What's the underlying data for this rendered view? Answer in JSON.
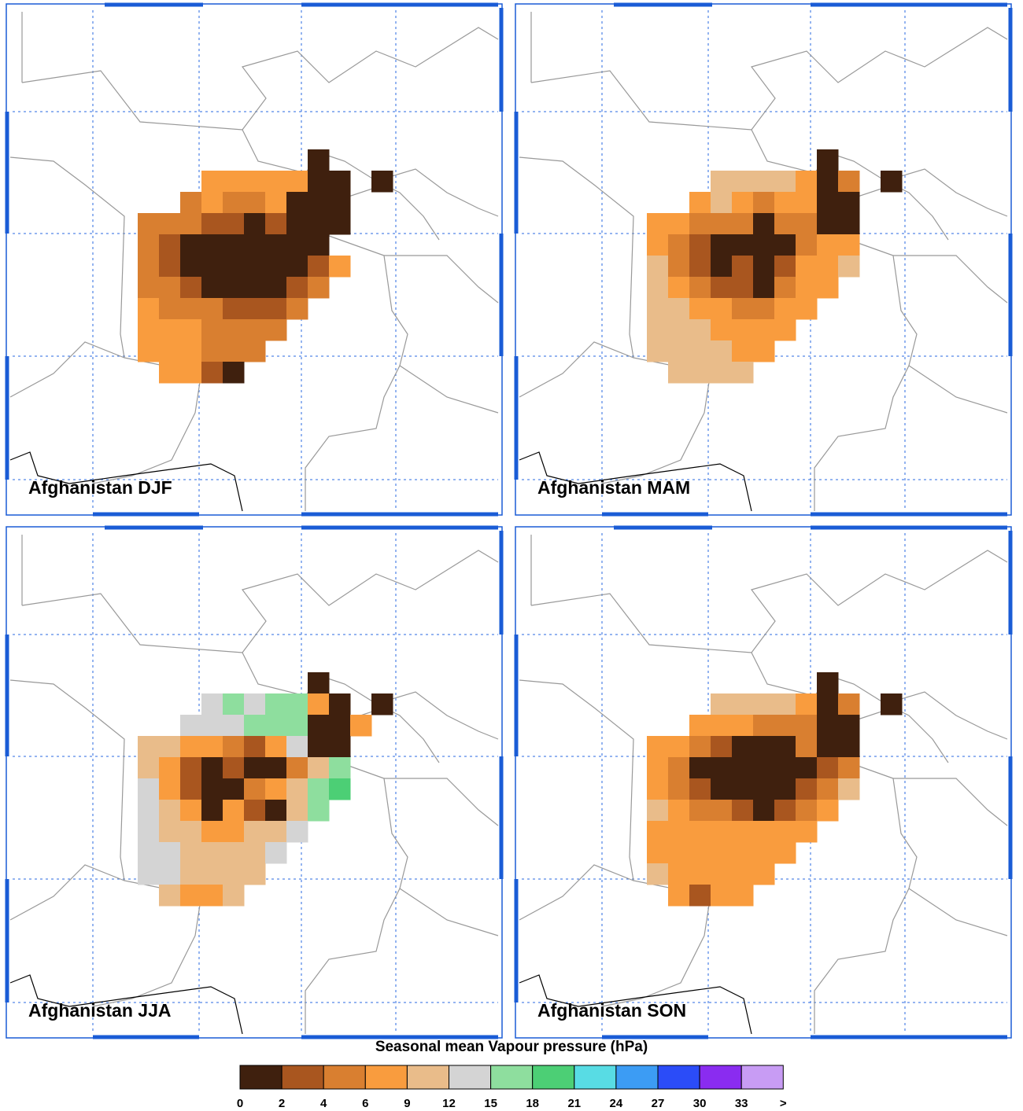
{
  "panels": [
    {
      "title": "Afghanistan DJF",
      "cells": [
        [
          null,
          null,
          null,
          null,
          null,
          null,
          null,
          null,
          null,
          1,
          null,
          null,
          null
        ],
        [
          null,
          null,
          null,
          null,
          7,
          7,
          7,
          7,
          7,
          1,
          1,
          null,
          1
        ],
        [
          null,
          null,
          null,
          5,
          7,
          5,
          5,
          7,
          1,
          1,
          1,
          null,
          null
        ],
        [
          null,
          5,
          5,
          5,
          3,
          3,
          1,
          3,
          1,
          1,
          1,
          null,
          null
        ],
        [
          null,
          5,
          3,
          1,
          1,
          1,
          1,
          1,
          1,
          1,
          null,
          null,
          null
        ],
        [
          null,
          5,
          3,
          1,
          1,
          1,
          1,
          1,
          1,
          3,
          7,
          null,
          null
        ],
        [
          null,
          5,
          5,
          3,
          1,
          1,
          1,
          1,
          3,
          5,
          null,
          null,
          null
        ],
        [
          null,
          7,
          5,
          5,
          5,
          3,
          3,
          3,
          5,
          null,
          null,
          null,
          null
        ],
        [
          null,
          7,
          7,
          7,
          5,
          5,
          5,
          5,
          null,
          null,
          null,
          null,
          null
        ],
        [
          null,
          7,
          7,
          7,
          5,
          5,
          5,
          null,
          null,
          null,
          null,
          null,
          null
        ],
        [
          null,
          null,
          7,
          7,
          3,
          1,
          null,
          null,
          null,
          null,
          null,
          null,
          null
        ]
      ]
    },
    {
      "title": "Afghanistan MAM",
      "cells": [
        [
          null,
          null,
          null,
          null,
          null,
          null,
          null,
          null,
          null,
          1,
          null,
          null,
          null
        ],
        [
          null,
          null,
          null,
          null,
          10,
          10,
          10,
          10,
          7,
          1,
          5,
          null,
          1
        ],
        [
          null,
          null,
          null,
          7,
          10,
          7,
          5,
          7,
          7,
          1,
          1,
          null,
          null
        ],
        [
          null,
          7,
          7,
          5,
          5,
          5,
          1,
          5,
          5,
          1,
          1,
          null,
          null
        ],
        [
          null,
          7,
          5,
          3,
          1,
          1,
          1,
          1,
          5,
          7,
          7,
          null,
          null
        ],
        [
          null,
          10,
          5,
          3,
          1,
          3,
          1,
          3,
          7,
          7,
          10,
          null,
          null
        ],
        [
          null,
          10,
          7,
          5,
          3,
          3,
          1,
          5,
          7,
          7,
          null,
          null,
          null
        ],
        [
          null,
          10,
          10,
          7,
          7,
          5,
          5,
          7,
          7,
          null,
          null,
          null,
          null
        ],
        [
          null,
          10,
          10,
          10,
          7,
          7,
          7,
          7,
          null,
          null,
          null,
          null,
          null
        ],
        [
          null,
          10,
          10,
          10,
          10,
          7,
          7,
          null,
          null,
          null,
          null,
          null,
          null
        ],
        [
          null,
          null,
          10,
          10,
          10,
          10,
          null,
          null,
          null,
          null,
          null,
          null,
          null
        ]
      ]
    },
    {
      "title": "Afghanistan JJA",
      "cells": [
        [
          null,
          null,
          null,
          null,
          null,
          null,
          null,
          null,
          null,
          1,
          null,
          null,
          null
        ],
        [
          null,
          null,
          null,
          null,
          13,
          16,
          13,
          16,
          16,
          7,
          1,
          null,
          1
        ],
        [
          null,
          null,
          null,
          13,
          13,
          13,
          16,
          16,
          16,
          1,
          1,
          7,
          null
        ],
        [
          null,
          10,
          10,
          7,
          7,
          5,
          3,
          7,
          13,
          1,
          1,
          null,
          null
        ],
        [
          null,
          10,
          7,
          3,
          1,
          3,
          1,
          1,
          5,
          10,
          16,
          null,
          null
        ],
        [
          null,
          13,
          7,
          3,
          1,
          1,
          5,
          7,
          10,
          16,
          19,
          null,
          null
        ],
        [
          null,
          13,
          10,
          7,
          1,
          7,
          3,
          1,
          10,
          16,
          null,
          null,
          null
        ],
        [
          null,
          13,
          10,
          10,
          7,
          7,
          10,
          10,
          13,
          null,
          null,
          null,
          null
        ],
        [
          null,
          13,
          13,
          10,
          10,
          10,
          10,
          13,
          null,
          null,
          null,
          null,
          null
        ],
        [
          null,
          13,
          13,
          10,
          10,
          10,
          10,
          null,
          null,
          null,
          null,
          null,
          null
        ],
        [
          null,
          null,
          10,
          7,
          7,
          10,
          null,
          null,
          null,
          null,
          null,
          null,
          null
        ]
      ]
    },
    {
      "title": "Afghanistan SON",
      "cells": [
        [
          null,
          null,
          null,
          null,
          null,
          null,
          null,
          null,
          null,
          1,
          null,
          null,
          null
        ],
        [
          null,
          null,
          null,
          null,
          10,
          10,
          10,
          10,
          7,
          1,
          5,
          null,
          1
        ],
        [
          null,
          null,
          null,
          7,
          7,
          7,
          5,
          5,
          5,
          1,
          1,
          null,
          null
        ],
        [
          null,
          7,
          7,
          5,
          3,
          1,
          1,
          1,
          5,
          1,
          1,
          null,
          null
        ],
        [
          null,
          7,
          5,
          1,
          1,
          1,
          1,
          1,
          1,
          3,
          5,
          null,
          null
        ],
        [
          null,
          7,
          5,
          3,
          1,
          1,
          1,
          1,
          3,
          5,
          10,
          null,
          null
        ],
        [
          null,
          10,
          7,
          5,
          5,
          3,
          1,
          3,
          5,
          7,
          null,
          null,
          null
        ],
        [
          null,
          7,
          7,
          7,
          7,
          7,
          7,
          7,
          7,
          null,
          null,
          null,
          null
        ],
        [
          null,
          7,
          7,
          7,
          7,
          7,
          7,
          7,
          null,
          null,
          null,
          null,
          null
        ],
        [
          null,
          10,
          7,
          7,
          7,
          7,
          7,
          null,
          null,
          null,
          null,
          null,
          null
        ],
        [
          null,
          null,
          7,
          3,
          7,
          7,
          null,
          null,
          null,
          null,
          null,
          null,
          null
        ]
      ]
    }
  ],
  "colorbar": {
    "title": "Seasonal mean Vapour pressure (hPa)",
    "tick_labels": [
      0,
      2,
      4,
      6,
      9,
      12,
      15,
      18,
      21,
      24,
      27,
      30,
      33,
      ">"
    ],
    "colors": [
      "#3f200e",
      "#a9561f",
      "#d97f30",
      "#f99c3e",
      "#e9bc8a",
      "#d4d4d4",
      "#8ede9e",
      "#4ccf75",
      "#58dce4",
      "#3c9cf4",
      "#2b4cf8",
      "#8a2cf0",
      "#c89cf4"
    ]
  }
}
